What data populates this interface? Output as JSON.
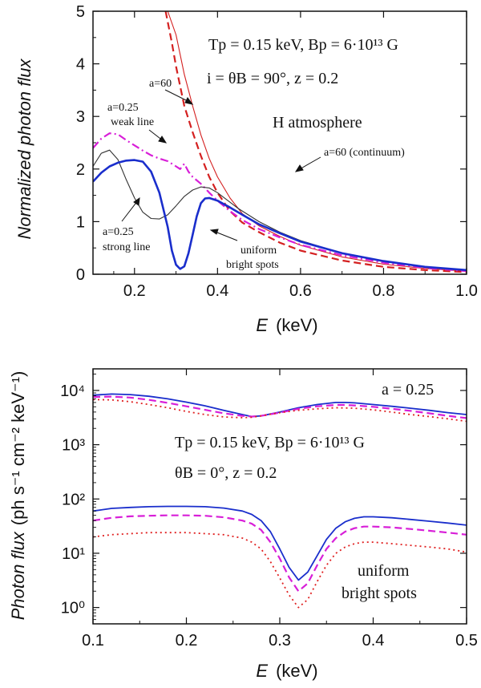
{
  "chart_data": [
    {
      "type": "line",
      "title": "",
      "xlabel_italic": "E",
      "xlabel_unit": "(keV)",
      "ylabel": "Normalized photon flux",
      "xlim": [
        0.1,
        1.0
      ],
      "ylim": [
        0,
        5
      ],
      "xticks": [
        0.2,
        0.4,
        0.6,
        0.8,
        1.0
      ],
      "xtick_labels": [
        "0.2",
        "0.4",
        "0.6",
        "0.8",
        "1.0"
      ],
      "yticks": [
        0,
        1,
        2,
        3,
        4,
        5
      ],
      "ytick_labels": [
        "0",
        "1",
        "2",
        "3",
        "4",
        "5"
      ],
      "annotations": {
        "params_line1": "Tp = 0.15 keV,  Bp = 6·10¹³ G",
        "params_line2": "i = θB = 90°,   z = 0.2",
        "atmosphere": "H atmosphere",
        "a60": "a=60",
        "a60_continuum": "a=60 (continuum)",
        "weak_line_a": "a=0.25",
        "weak_line_b": "weak line",
        "strong_line_a": "a=0.25",
        "strong_line_b": "strong line",
        "uniform_a": "uniform",
        "uniform_b": "bright spots"
      },
      "series": [
        {
          "name": "a=60 (continuum)",
          "color": "#d42020",
          "style": "solid-thin",
          "x": [
            0.28,
            0.3,
            0.32,
            0.34,
            0.36,
            0.38,
            0.4,
            0.43,
            0.46,
            0.5,
            0.55,
            0.6,
            0.7,
            0.8,
            0.9,
            1.0
          ],
          "y": [
            5.0,
            4.55,
            3.8,
            3.2,
            2.65,
            2.2,
            1.85,
            1.45,
            1.15,
            0.92,
            0.72,
            0.55,
            0.33,
            0.19,
            0.11,
            0.06
          ]
        },
        {
          "name": "a=60",
          "color": "#d42020",
          "style": "dashed",
          "x": [
            0.275,
            0.29,
            0.3,
            0.32,
            0.34,
            0.36,
            0.38,
            0.4,
            0.43,
            0.46,
            0.5,
            0.55,
            0.6,
            0.7,
            0.8,
            0.9,
            1.0
          ],
          "y": [
            5.0,
            4.4,
            3.95,
            3.2,
            2.7,
            2.25,
            1.85,
            1.55,
            1.2,
            0.98,
            0.8,
            0.6,
            0.45,
            0.26,
            0.14,
            0.08,
            0.04
          ]
        },
        {
          "name": "a=0.25 weak line",
          "color": "#d81fd8",
          "style": "dashdot",
          "x": [
            0.1,
            0.12,
            0.14,
            0.16,
            0.18,
            0.2,
            0.22,
            0.24,
            0.26,
            0.28,
            0.3,
            0.31,
            0.32,
            0.33,
            0.34,
            0.36,
            0.38,
            0.4,
            0.43,
            0.46,
            0.5,
            0.55,
            0.6,
            0.7,
            0.8,
            0.9,
            1.0
          ],
          "y": [
            2.4,
            2.58,
            2.68,
            2.66,
            2.55,
            2.45,
            2.35,
            2.26,
            2.2,
            2.15,
            2.05,
            2.0,
            2.1,
            1.95,
            1.85,
            1.72,
            1.55,
            1.4,
            1.2,
            1.03,
            0.86,
            0.7,
            0.56,
            0.36,
            0.22,
            0.12,
            0.06
          ]
        },
        {
          "name": "a=0.25 strong line",
          "color": "#333333",
          "style": "solid-thin",
          "x": [
            0.1,
            0.12,
            0.14,
            0.16,
            0.18,
            0.2,
            0.22,
            0.24,
            0.26,
            0.28,
            0.3,
            0.32,
            0.34,
            0.36,
            0.38,
            0.4,
            0.45,
            0.5,
            0.55,
            0.6,
            0.7,
            0.8,
            0.9,
            1.0
          ],
          "y": [
            2.05,
            2.3,
            2.36,
            2.18,
            1.8,
            1.45,
            1.18,
            1.06,
            1.05,
            1.13,
            1.3,
            1.48,
            1.6,
            1.66,
            1.64,
            1.55,
            1.25,
            1.0,
            0.8,
            0.64,
            0.4,
            0.24,
            0.14,
            0.08
          ]
        },
        {
          "name": "uniform bright spots",
          "color": "#1a2ecc",
          "style": "solid-thick",
          "x": [
            0.1,
            0.12,
            0.14,
            0.16,
            0.18,
            0.2,
            0.22,
            0.24,
            0.26,
            0.28,
            0.29,
            0.3,
            0.31,
            0.32,
            0.33,
            0.34,
            0.35,
            0.36,
            0.37,
            0.38,
            0.4,
            0.43,
            0.46,
            0.5,
            0.55,
            0.6,
            0.7,
            0.8,
            0.9,
            1.0
          ],
          "y": [
            1.76,
            1.93,
            2.05,
            2.12,
            2.16,
            2.17,
            2.14,
            1.95,
            1.55,
            0.9,
            0.45,
            0.18,
            0.1,
            0.15,
            0.4,
            0.75,
            1.1,
            1.35,
            1.44,
            1.45,
            1.4,
            1.27,
            1.13,
            0.95,
            0.78,
            0.62,
            0.4,
            0.25,
            0.14,
            0.08
          ]
        }
      ]
    },
    {
      "type": "line",
      "title": "",
      "xlabel_italic": "E",
      "xlabel_unit": "(keV)",
      "ylabel_italic": "Photon flux",
      "ylabel_unit": "(ph s⁻¹ cm⁻² keV⁻¹)",
      "xlim": [
        0.1,
        0.5
      ],
      "ylim": [
        0.5,
        25000
      ],
      "yscale": "log",
      "xticks": [
        0.1,
        0.2,
        0.3,
        0.4,
        0.5
      ],
      "xtick_labels": [
        "0.1",
        "0.2",
        "0.3",
        "0.4",
        "0.5"
      ],
      "yticks": [
        1,
        10,
        100,
        1000,
        10000
      ],
      "ytick_labels": [
        "10⁰",
        "10¹",
        "10²",
        "10³",
        "10⁴"
      ],
      "annotations": {
        "a_value": "a = 0.25",
        "params_line1": "Tp = 0.15 keV,  Bp = 6·10¹³ G",
        "params_line2": "θB = 0°,   z = 0.2",
        "uniform_a": "uniform",
        "uniform_b": "bright spots"
      },
      "series": [
        {
          "name": "a=0.25 solid",
          "color": "#1a2ecc",
          "style": "solid",
          "x": [
            0.1,
            0.12,
            0.14,
            0.16,
            0.18,
            0.2,
            0.22,
            0.24,
            0.26,
            0.27,
            0.28,
            0.3,
            0.32,
            0.34,
            0.36,
            0.37,
            0.38,
            0.4,
            0.42,
            0.44,
            0.46,
            0.48,
            0.5
          ],
          "y": [
            8200,
            8600,
            8400,
            7800,
            7000,
            6100,
            5200,
            4300,
            3600,
            3300,
            3400,
            4000,
            4800,
            5500,
            6000,
            6000,
            5900,
            5500,
            5100,
            4700,
            4300,
            3900,
            3600
          ]
        },
        {
          "name": "a=0.25 dashed",
          "color": "#d81fd8",
          "style": "dashed",
          "x": [
            0.1,
            0.12,
            0.14,
            0.16,
            0.18,
            0.2,
            0.22,
            0.24,
            0.26,
            0.27,
            0.28,
            0.3,
            0.32,
            0.34,
            0.36,
            0.37,
            0.38,
            0.4,
            0.42,
            0.44,
            0.46,
            0.48,
            0.5
          ],
          "y": [
            7600,
            7700,
            7400,
            6700,
            5900,
            5100,
            4400,
            3800,
            3400,
            3300,
            3400,
            3900,
            4600,
            5100,
            5400,
            5400,
            5300,
            5000,
            4600,
            4200,
            3800,
            3400,
            3100
          ]
        },
        {
          "name": "a=0.25 dotted",
          "color": "#e02020",
          "style": "dotted",
          "x": [
            0.1,
            0.12,
            0.14,
            0.16,
            0.18,
            0.2,
            0.22,
            0.24,
            0.26,
            0.27,
            0.28,
            0.3,
            0.32,
            0.34,
            0.36,
            0.38,
            0.4,
            0.42,
            0.44,
            0.46,
            0.48,
            0.5
          ],
          "y": [
            6800,
            6700,
            6200,
            5500,
            4800,
            4100,
            3600,
            3250,
            3150,
            3200,
            3400,
            3900,
            4300,
            4600,
            4800,
            4700,
            4400,
            4000,
            3600,
            3300,
            3000,
            2700
          ]
        },
        {
          "name": "uniform solid",
          "color": "#1a2ecc",
          "style": "solid",
          "x": [
            0.1,
            0.12,
            0.14,
            0.16,
            0.18,
            0.2,
            0.22,
            0.24,
            0.26,
            0.27,
            0.28,
            0.29,
            0.3,
            0.31,
            0.32,
            0.33,
            0.34,
            0.35,
            0.36,
            0.37,
            0.38,
            0.39,
            0.4,
            0.42,
            0.44,
            0.46,
            0.48,
            0.5
          ],
          "y": [
            60,
            67,
            70,
            72,
            73,
            73,
            72,
            68,
            60,
            52,
            40,
            25,
            12,
            5.5,
            3.2,
            4.5,
            9,
            18,
            29,
            38,
            44,
            47,
            47,
            45,
            42,
            39,
            36,
            33
          ]
        },
        {
          "name": "uniform dashed",
          "color": "#d81fd8",
          "style": "dashed",
          "x": [
            0.1,
            0.12,
            0.14,
            0.16,
            0.18,
            0.2,
            0.22,
            0.24,
            0.26,
            0.27,
            0.28,
            0.29,
            0.3,
            0.31,
            0.32,
            0.33,
            0.34,
            0.35,
            0.36,
            0.37,
            0.38,
            0.39,
            0.4,
            0.42,
            0.44,
            0.46,
            0.48,
            0.5
          ],
          "y": [
            40,
            45,
            48,
            49,
            50,
            50,
            49,
            46,
            40,
            35,
            27,
            16,
            8,
            3.6,
            2.0,
            2.8,
            6,
            12,
            19,
            25,
            29,
            31,
            31,
            30,
            28,
            26,
            24,
            22
          ]
        },
        {
          "name": "uniform dotted",
          "color": "#e02020",
          "style": "dotted",
          "x": [
            0.1,
            0.12,
            0.14,
            0.16,
            0.18,
            0.2,
            0.22,
            0.24,
            0.26,
            0.27,
            0.28,
            0.29,
            0.3,
            0.31,
            0.32,
            0.33,
            0.34,
            0.35,
            0.36,
            0.37,
            0.38,
            0.39,
            0.4,
            0.42,
            0.44,
            0.46,
            0.48,
            0.5
          ],
          "y": [
            20,
            22,
            23,
            24,
            24,
            24,
            23,
            22,
            19,
            16,
            12,
            7,
            3.5,
            1.7,
            1.0,
            1.4,
            3,
            6,
            10,
            13,
            15,
            16,
            16,
            15,
            14,
            13,
            12,
            10.5
          ]
        }
      ]
    }
  ]
}
